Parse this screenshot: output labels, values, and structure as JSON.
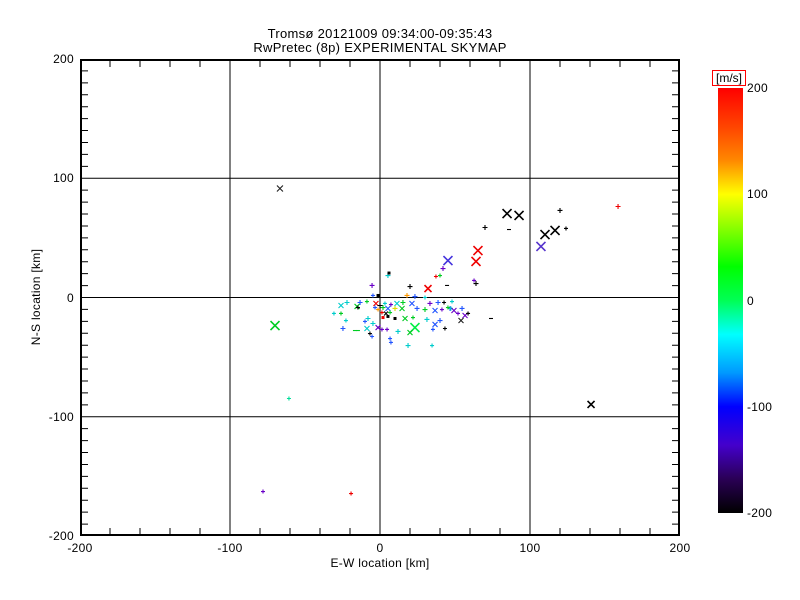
{
  "chart_data": {
    "type": "scatter",
    "title": "Tromsø 20121009 09:34:00-09:35:43",
    "subtitle": "RwPretec (8p) EXPERIMENTAL SKYMAP",
    "xlabel": "E-W location [km]",
    "ylabel": "N-S location [km]",
    "xlim": [
      -200,
      200
    ],
    "ylim": [
      -200,
      200
    ],
    "xticks": [
      -200,
      -100,
      0,
      100,
      200
    ],
    "yticks": [
      200,
      100,
      0,
      -100,
      -200
    ],
    "xminor_step": 20,
    "yminor_step": 10,
    "grid": true,
    "grid_color": "#000000",
    "colorbar": {
      "label": "[m/s]",
      "label_box_color": "#ff0000",
      "min": -200,
      "max": 200,
      "ticks": [
        200,
        100,
        0,
        -100,
        -200
      ],
      "gradient": [
        {
          "pos": 0.0,
          "color": "#ff0000"
        },
        {
          "pos": 0.09,
          "color": "#ff4400"
        },
        {
          "pos": 0.17,
          "color": "#ff8800"
        },
        {
          "pos": 0.25,
          "color": "#ffff00"
        },
        {
          "pos": 0.33,
          "color": "#88ff00"
        },
        {
          "pos": 0.42,
          "color": "#00ff00"
        },
        {
          "pos": 0.5,
          "color": "#00ff55"
        },
        {
          "pos": 0.58,
          "color": "#00ffff"
        },
        {
          "pos": 0.67,
          "color": "#0099ff"
        },
        {
          "pos": 0.75,
          "color": "#0000ff"
        },
        {
          "pos": 0.84,
          "color": "#4400cc"
        },
        {
          "pos": 0.92,
          "color": "#2a0055"
        },
        {
          "pos": 1.0,
          "color": "#000000"
        }
      ]
    },
    "points_format": [
      "x_km",
      "y_km",
      "color",
      "marker",
      "half_size_px",
      "velocity_ms_est"
    ],
    "points": [
      [
        -66.7,
        91.4,
        "#202020",
        "x",
        3,
        -190
      ],
      [
        -70.0,
        -23.5,
        "#00cc22",
        "x",
        4.5,
        20
      ],
      [
        -60.7,
        -84.7,
        "#00dd99",
        "+",
        2,
        -20
      ],
      [
        -78.0,
        -162.7,
        "#6a00c8",
        "+",
        2,
        -150
      ],
      [
        -19.3,
        -164.4,
        "#ee0000",
        "+",
        2,
        185
      ],
      [
        140.7,
        -89.7,
        "#000000",
        "x",
        3.5,
        -195
      ],
      [
        158.7,
        76.3,
        "#ee0000",
        "+",
        2.5,
        190
      ],
      [
        84.7,
        70.4,
        "#000000",
        "x",
        4.5,
        -195
      ],
      [
        92.7,
        68.8,
        "#000000",
        "x",
        4.5,
        -195
      ],
      [
        70.0,
        58.7,
        "#000000",
        "+",
        2.5,
        -190
      ],
      [
        86.0,
        57.0,
        "#000000",
        "-",
        2,
        -190
      ],
      [
        120.0,
        73.0,
        "#000000",
        "+",
        2.5,
        -190
      ],
      [
        124.0,
        57.9,
        "#000000",
        "+",
        2,
        -190
      ],
      [
        116.7,
        56.2,
        "#000000",
        "x",
        4.5,
        -195
      ],
      [
        110.0,
        52.8,
        "#000000",
        "x",
        4.5,
        -195
      ],
      [
        107.3,
        42.8,
        "#5533cc",
        "x",
        4.5,
        -150
      ],
      [
        65.3,
        39.4,
        "#ee0000",
        "x",
        4.5,
        185
      ],
      [
        64.0,
        30.2,
        "#ee0000",
        "x",
        4.5,
        185
      ],
      [
        45.3,
        31.0,
        "#4433dd",
        "x",
        4.5,
        -120
      ],
      [
        42.0,
        24.3,
        "#6a00c8",
        "+",
        2.5,
        -145
      ],
      [
        40.0,
        18.4,
        "#00cc22",
        "+",
        2,
        25
      ],
      [
        37.3,
        17.6,
        "#ee0000",
        "+",
        2,
        180
      ],
      [
        44.7,
        10.1,
        "#000000",
        "-",
        2,
        -190
      ],
      [
        64.0,
        11.7,
        "#000000",
        "+",
        2.5,
        -190
      ],
      [
        62.7,
        14.3,
        "#6a00c8",
        "+",
        2,
        -150
      ],
      [
        5.3,
        18.4,
        "#00cccc",
        "+",
        2.5,
        -50
      ],
      [
        6.0,
        20.5,
        "#000000",
        "dot",
        1.5,
        -190
      ],
      [
        -5.3,
        10.1,
        "#6a00c8",
        "+",
        2.5,
        -145
      ],
      [
        -4.7,
        1.7,
        "#2255ff",
        "+",
        2,
        -90
      ],
      [
        -1.3,
        1.7,
        "#000000",
        "dot",
        1.5,
        -190
      ],
      [
        -22.0,
        -4.2,
        "#00cccc",
        "+",
        2.5,
        -50
      ],
      [
        -13.3,
        -4.2,
        "#2255ff",
        "+",
        2.5,
        -90
      ],
      [
        -8.7,
        -3.4,
        "#00cc22",
        "+",
        2,
        20
      ],
      [
        -26.0,
        -6.7,
        "#00cccc",
        "x",
        2.5,
        -50
      ],
      [
        -30.7,
        -13.4,
        "#00cccc",
        "+",
        2,
        -45
      ],
      [
        -15.3,
        -7.5,
        "#00cc22",
        "x",
        2.5,
        15
      ],
      [
        -22.7,
        -19.3,
        "#00cccc",
        "+",
        2,
        -50
      ],
      [
        -10.0,
        -20.1,
        "#2255ff",
        "+",
        2,
        -85
      ],
      [
        -2.7,
        -5.0,
        "#ee0000",
        "x",
        2.5,
        180
      ],
      [
        0.0,
        -6.7,
        "#000000",
        "+",
        2.5,
        -190
      ],
      [
        2.0,
        -8.4,
        "#00cc22",
        "+",
        2.5,
        25
      ],
      [
        -1.3,
        -10.1,
        "#ff9900",
        "+",
        2,
        130
      ],
      [
        3.3,
        -5.0,
        "#00cccc",
        "+",
        2,
        -55
      ],
      [
        5.3,
        -9.2,
        "#2255ff",
        "x",
        2.5,
        -95
      ],
      [
        1.3,
        -12.6,
        "#ee0000",
        "+",
        2,
        175
      ],
      [
        6.7,
        -12.6,
        "#00cc22",
        "+",
        2,
        20
      ],
      [
        -3.3,
        -8.4,
        "#2255ff",
        "+",
        2,
        -90
      ],
      [
        4.0,
        -13.4,
        "#000000",
        "x",
        2,
        -185
      ],
      [
        7.3,
        -5.9,
        "#6a00c8",
        "+",
        2,
        -140
      ],
      [
        20.0,
        9.2,
        "#000000",
        "+",
        2.5,
        -190
      ],
      [
        32.0,
        7.5,
        "#ee0000",
        "x",
        3.5,
        185
      ],
      [
        18.0,
        1.7,
        "#ff9900",
        "+",
        2.5,
        135
      ],
      [
        23.3,
        0.8,
        "#2255ff",
        "+",
        2.5,
        -90
      ],
      [
        30.0,
        0.0,
        "#00cccc",
        "+",
        2,
        -50
      ],
      [
        11.3,
        -5.0,
        "#00cccc",
        "x",
        2.5,
        -55
      ],
      [
        15.3,
        -4.2,
        "#00cc22",
        "+",
        2.5,
        20
      ],
      [
        21.3,
        -5.0,
        "#2255ff",
        "x",
        2.5,
        -95
      ],
      [
        33.3,
        -5.0,
        "#6a00c8",
        "+",
        2.5,
        -140
      ],
      [
        38.7,
        -4.2,
        "#2255ff",
        "+",
        2.5,
        -90
      ],
      [
        42.7,
        -4.2,
        "#000000",
        "+",
        2,
        -190
      ],
      [
        48.0,
        -3.4,
        "#00cccc",
        "+",
        2,
        -50
      ],
      [
        10.0,
        -9.2,
        "#dddd00",
        "+",
        2.5,
        100
      ],
      [
        14.7,
        -9.2,
        "#00cc22",
        "x",
        2.5,
        20
      ],
      [
        24.7,
        -9.2,
        "#2255ff",
        "+",
        2.5,
        -90
      ],
      [
        30.0,
        -10.1,
        "#00cc22",
        "+",
        2.5,
        25
      ],
      [
        36.7,
        -10.9,
        "#2255ff",
        "x",
        2.5,
        -95
      ],
      [
        41.3,
        -10.1,
        "#6a00c8",
        "+",
        2,
        -145
      ],
      [
        46.7,
        -9.2,
        "#2255ff",
        "+",
        2.5,
        -90
      ],
      [
        -8.0,
        -17.6,
        "#00cccc",
        "+",
        2.5,
        -50
      ],
      [
        -4.7,
        -21.8,
        "#00cccc",
        "+",
        2.5,
        -55
      ],
      [
        -8.7,
        -26.0,
        "#00cccc",
        "x",
        2.5,
        -50
      ],
      [
        -24.7,
        -26.0,
        "#2255ff",
        "+",
        2.5,
        -90
      ],
      [
        -16.7,
        -27.7,
        "#00cc22",
        "-",
        2,
        15
      ],
      [
        -14.7,
        -27.7,
        "#00cc22",
        "-",
        2,
        20
      ],
      [
        -1.3,
        -25.2,
        "#6a00c8",
        "x",
        2.5,
        -145
      ],
      [
        -6.7,
        -30.2,
        "#000000",
        "+",
        2,
        -185
      ],
      [
        -5.3,
        -32.7,
        "#2255ff",
        "+",
        2,
        -90
      ],
      [
        1.3,
        -26.8,
        "#6a00c8",
        "+",
        2,
        -150
      ],
      [
        4.7,
        -26.8,
        "#6a00c8",
        "+",
        2,
        -145
      ],
      [
        2.0,
        -16.8,
        "#ee0000",
        "dot",
        1.5,
        180
      ],
      [
        5.3,
        -15.9,
        "#000000",
        "dot",
        1.5,
        -190
      ],
      [
        6.7,
        -34.4,
        "#2255ff",
        "+",
        2,
        -85
      ],
      [
        10.0,
        -17.6,
        "#000000",
        "dot",
        1.5,
        -190
      ],
      [
        16.7,
        -17.6,
        "#00cc22",
        "x",
        2.5,
        20
      ],
      [
        22.0,
        -16.8,
        "#00cc22",
        "+",
        2,
        25
      ],
      [
        31.3,
        -18.4,
        "#00cccc",
        "+",
        2.5,
        -50
      ],
      [
        40.0,
        -19.3,
        "#2255ff",
        "+",
        2.5,
        -85
      ],
      [
        36.7,
        -22.6,
        "#2255ff",
        "x",
        2.5,
        -95
      ],
      [
        43.3,
        -26.0,
        "#000000",
        "+",
        2,
        -185
      ],
      [
        35.3,
        -26.8,
        "#2255ff",
        "+",
        2,
        -90
      ],
      [
        23.3,
        -25.2,
        "#00ee44",
        "x",
        4.5,
        10
      ],
      [
        20.0,
        -29.4,
        "#00cc22",
        "x",
        2.5,
        15
      ],
      [
        12.0,
        -28.5,
        "#00cccc",
        "+",
        2.5,
        -50
      ],
      [
        18.7,
        -40.3,
        "#00cccc",
        "+",
        2.5,
        -45
      ],
      [
        34.7,
        -40.3,
        "#00cccc",
        "+",
        2,
        -50
      ],
      [
        45.3,
        -8.4,
        "#00cc22",
        "+",
        2,
        20
      ],
      [
        47.3,
        -9.2,
        "#00cccc",
        "+",
        2,
        -50
      ],
      [
        49.3,
        -10.9,
        "#6a00c8",
        "x",
        2.5,
        -145
      ],
      [
        54.7,
        -9.2,
        "#2255ff",
        "+",
        2.5,
        -90
      ],
      [
        52.0,
        -13.4,
        "#6a00c8",
        "+",
        2,
        -150
      ],
      [
        56.7,
        -15.1,
        "#6a00c8",
        "x",
        2.5,
        -145
      ],
      [
        58.7,
        -13.4,
        "#000000",
        "+",
        2,
        -190
      ],
      [
        74.0,
        -17.6,
        "#000000",
        "-",
        2,
        -190
      ],
      [
        54.0,
        -19.3,
        "#202020",
        "x",
        2.5,
        -185
      ],
      [
        7.3,
        -37.7,
        "#2255ff",
        "+",
        2,
        -90
      ],
      [
        -14.7,
        -8.4,
        "#000000",
        "+",
        2,
        -190
      ],
      [
        -26.0,
        -13.4,
        "#00cc22",
        "+",
        2,
        20
      ]
    ]
  }
}
